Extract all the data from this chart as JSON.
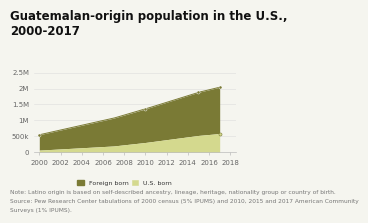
{
  "title": "Guatemalan-origin population in the U.S.,\n2000-2017",
  "years": [
    2000,
    2007,
    2010,
    2015,
    2017
  ],
  "foreign_born": [
    480000,
    870000,
    1050000,
    1350000,
    1450000
  ],
  "us_born": [
    70000,
    200000,
    310000,
    530000,
    590000
  ],
  "foreign_born_color": "#7a7a35",
  "us_born_color": "#d4d98e",
  "background_color": "#f5f5ef",
  "ylim": [
    0,
    2500000
  ],
  "yticks": [
    0,
    500000,
    1000000,
    1500000,
    2000000,
    2500000
  ],
  "ytick_labels": [
    "0",
    "500k",
    "1M",
    "1.5M",
    "2M",
    "2.5M"
  ],
  "xticks": [
    2000,
    2002,
    2004,
    2006,
    2008,
    2010,
    2012,
    2014,
    2016,
    2018
  ],
  "xlim": [
    1999.5,
    2018.5
  ],
  "note_line1": "Note: Latino origin is based on self-described ancestry, lineage, heritage, nationality group or country of birth.",
  "note_line2": "Source: Pew Research Center tabulations of 2000 census (5% IPUMS) and 2010, 2015 and 2017 American Community",
  "note_line3": "Surveys (1% IPUMS).",
  "legend_foreign": "Foreign born",
  "legend_us": "U.S. born",
  "title_fontsize": 8.5,
  "note_fontsize": 4.2,
  "tick_fontsize": 5
}
